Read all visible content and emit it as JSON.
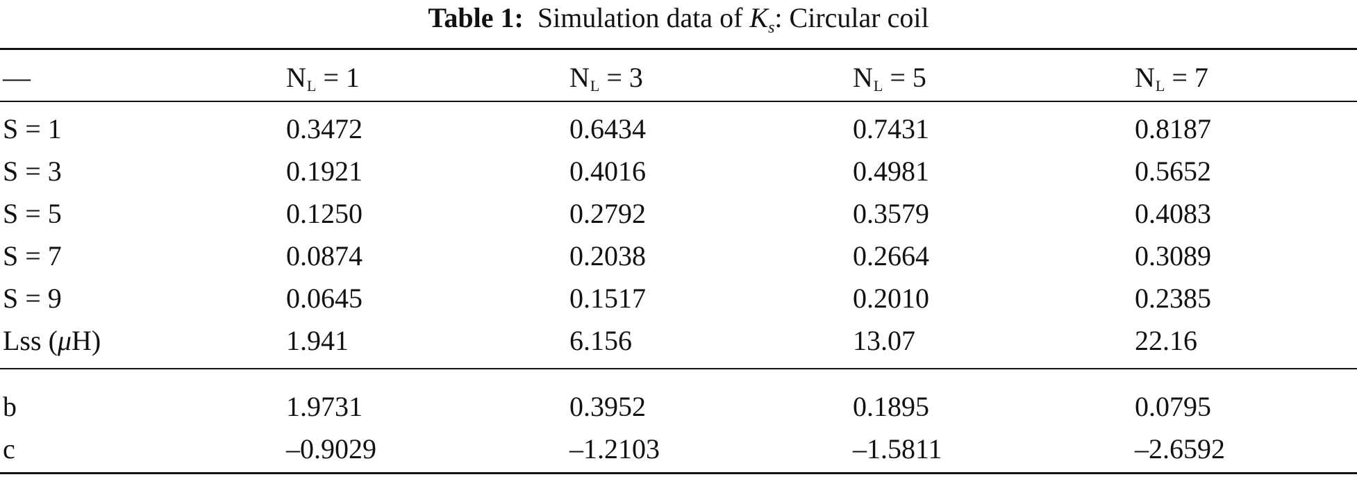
{
  "caption": {
    "label": "Table 1:",
    "text_before": "Simulation data of",
    "symbol": "K",
    "symbol_subscript": "s",
    "text_after": ": Circular coil"
  },
  "table": {
    "header": {
      "corner": "—",
      "columns": [
        {
          "base": "N",
          "sub": "L",
          "rest": " = 1"
        },
        {
          "base": "N",
          "sub": "L",
          "rest": " = 3"
        },
        {
          "base": "N",
          "sub": "L",
          "rest": " = 5"
        },
        {
          "base": "N",
          "sub": "L",
          "rest": " = 7"
        }
      ]
    },
    "rows": [
      {
        "label": "S = 1",
        "values": [
          "0.3472",
          "0.6434",
          "0.7431",
          "0.8187"
        ]
      },
      {
        "label": "S = 3",
        "values": [
          "0.1921",
          "0.4016",
          "0.4981",
          "0.5652"
        ]
      },
      {
        "label": "S = 5",
        "values": [
          "0.1250",
          "0.2792",
          "0.3579",
          "0.4083"
        ]
      },
      {
        "label": "S = 7",
        "values": [
          "0.0874",
          "0.2038",
          "0.2664",
          "0.3089"
        ]
      },
      {
        "label": "S = 9",
        "values": [
          "0.0645",
          "0.1517",
          "0.2010",
          "0.2385"
        ]
      },
      {
        "label_pre": "Lss (",
        "label_mu": "μ",
        "label_post": "H)",
        "values": [
          "1.941",
          "6.156",
          "13.07",
          "22.16"
        ]
      }
    ],
    "fit_rows": [
      {
        "label": "b",
        "values": [
          "1.9731",
          "0.3952",
          "0.1895",
          "0.0795"
        ]
      },
      {
        "label": "c",
        "values": [
          "–0.9029",
          "–1.2103",
          "–1.5811",
          "–2.6592"
        ]
      }
    ]
  }
}
